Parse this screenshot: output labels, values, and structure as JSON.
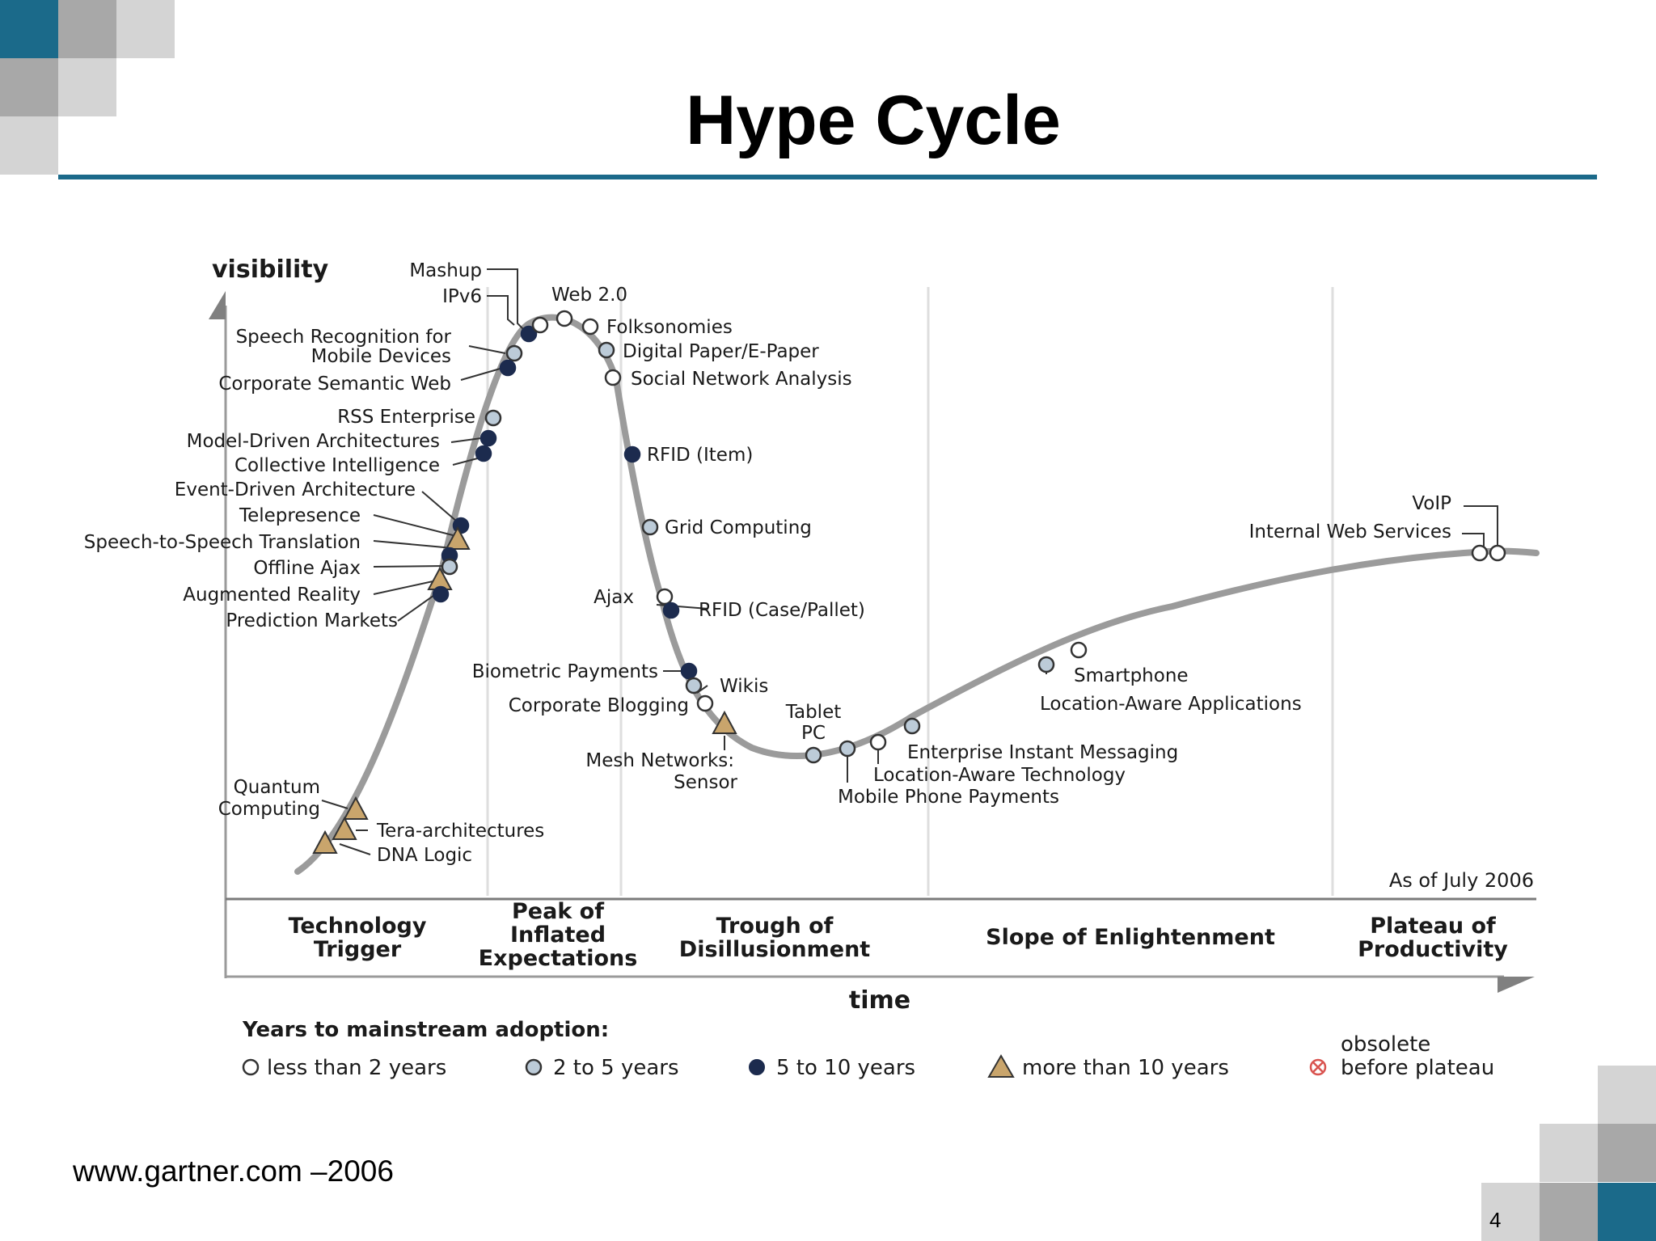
{
  "slide": {
    "title": "Hype Cycle",
    "source": "www.gartner.com –2006",
    "page_number": "4",
    "accent_color": "#1b6a8a",
    "deco_gray": "#a8a8a8",
    "deco_light": "#d4d4d4"
  },
  "chart_data": {
    "type": "line",
    "title": "Hype Cycle",
    "ylabel": "visibility",
    "xlabel": "time",
    "note": "As of July 2006",
    "curve_color": "#9b9b9b",
    "phases": [
      {
        "lines": [
          "Technology",
          "Trigger"
        ]
      },
      {
        "lines": [
          "Peak of",
          "Inflated",
          "Expectations"
        ]
      },
      {
        "lines": [
          "Trough of",
          "Disillusionment"
        ]
      },
      {
        "lines": [
          "Slope of Enlightenment"
        ]
      },
      {
        "lines": [
          "Plateau of",
          "Productivity"
        ]
      }
    ],
    "legend": {
      "title": "Years to mainstream adoption:",
      "items": [
        {
          "key": "lt2",
          "label": "less than 2 years",
          "color": "#ffffff",
          "shape": "circle"
        },
        {
          "key": "y2to5",
          "label": "2 to 5 years",
          "color": "#bccbd8",
          "shape": "circle"
        },
        {
          "key": "y5to10",
          "label": "5 to 10 years",
          "color": "#1c2b4e",
          "shape": "circle"
        },
        {
          "key": "gt10",
          "label": "more than 10 years",
          "color": "#c9a56c",
          "shape": "triangle"
        },
        {
          "key": "obsolete",
          "label": "before plateau",
          "label_top": "obsolete",
          "color": "#d9534f",
          "shape": "crossed"
        }
      ]
    },
    "technologies": [
      {
        "name": "Mashup",
        "category": "y5to10"
      },
      {
        "name": "IPv6",
        "category": "lt2"
      },
      {
        "name": "Web 2.0",
        "category": "lt2"
      },
      {
        "name": "Folksonomies",
        "category": "lt2"
      },
      {
        "name": "Digital Paper/E-Paper",
        "category": "y2to5"
      },
      {
        "name": "Social Network Analysis",
        "category": "lt2"
      },
      {
        "name": "Speech Recognition for Mobile Devices",
        "label_lines": [
          "Speech Recognition for",
          "Mobile Devices"
        ],
        "category": "y2to5"
      },
      {
        "name": "Corporate Semantic Web",
        "category": "y5to10"
      },
      {
        "name": "RSS Enterprise",
        "category": "y2to5"
      },
      {
        "name": "Model-Driven Architectures",
        "category": "y5to10"
      },
      {
        "name": "Collective Intelligence",
        "category": "y5to10"
      },
      {
        "name": "Event-Driven Architecture",
        "category": "y5to10"
      },
      {
        "name": "Telepresence",
        "category": "gt10"
      },
      {
        "name": "Speech-to-Speech Translation",
        "category": "y5to10"
      },
      {
        "name": "Offline Ajax",
        "category": "y2to5"
      },
      {
        "name": "Augmented Reality",
        "category": "gt10"
      },
      {
        "name": "Prediction Markets",
        "category": "y5to10"
      },
      {
        "name": "RFID (Item)",
        "category": "y5to10"
      },
      {
        "name": "Grid Computing",
        "category": "y2to5"
      },
      {
        "name": "Ajax",
        "category": "lt2"
      },
      {
        "name": "RFID (Case/Pallet)",
        "category": "y5to10"
      },
      {
        "name": "Biometric Payments",
        "category": "y5to10"
      },
      {
        "name": "Wikis",
        "category": "y2to5"
      },
      {
        "name": "Corporate Blogging",
        "category": "lt2"
      },
      {
        "name": "Mesh Networks: Sensor",
        "label_lines": [
          "Mesh Networks:",
          "Sensor"
        ],
        "category": "gt10"
      },
      {
        "name": "Tablet PC",
        "label_lines": [
          "Tablet",
          "PC"
        ],
        "category": "y2to5"
      },
      {
        "name": "Mobile Phone Payments",
        "category": "y2to5"
      },
      {
        "name": "Location-Aware Technology",
        "category": "lt2"
      },
      {
        "name": "Enterprise Instant Messaging",
        "category": "y2to5"
      },
      {
        "name": "Location-Aware Applications",
        "category": "y2to5"
      },
      {
        "name": "Smartphone",
        "category": "lt2"
      },
      {
        "name": "VoIP",
        "category": "lt2"
      },
      {
        "name": "Internal Web Services",
        "category": "lt2"
      },
      {
        "name": "Quantum Computing",
        "label_lines": [
          "Quantum",
          "Computing"
        ],
        "category": "gt10"
      },
      {
        "name": "Tera-architectures",
        "category": "gt10"
      },
      {
        "name": "DNA Logic",
        "category": "gt10"
      }
    ]
  }
}
